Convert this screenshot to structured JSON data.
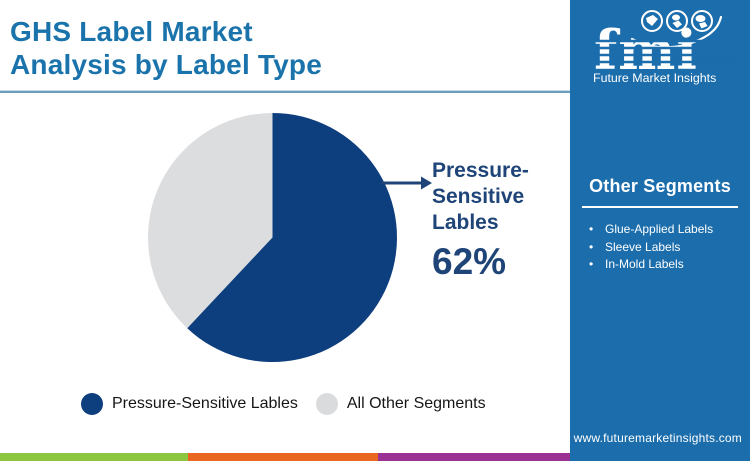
{
  "header": {
    "title_line1": "GHS Label Market",
    "title_line2": "Analysis by Label Type"
  },
  "chart_data": {
    "type": "pie",
    "title": "GHS Label Market Analysis by Label Type",
    "slices": [
      {
        "label": "Pressure-Sensitive Lables",
        "value": 62,
        "color": "#0d3e7d"
      },
      {
        "label": "All Other Segments",
        "value": 38,
        "color": "#dcdddf"
      }
    ],
    "start_angle_deg": 0,
    "direction": "clockwise",
    "legend_position": "bottom",
    "annotation": {
      "target_slice": "Pressure-Sensitive Lables",
      "lines": [
        "Pressure-",
        "Sensitive",
        "Lables"
      ],
      "value_label": "62%"
    }
  },
  "callout": {
    "line1": "Pressure-",
    "line2": "Sensitive",
    "line3": "Lables",
    "value": "62%"
  },
  "legend": [
    {
      "label": "Pressure-Sensitive Lables",
      "color": "#0d3e7d"
    },
    {
      "label": "All Other Segments",
      "color": "#d9dbdd"
    }
  ],
  "logo": {
    "brand": "fmi",
    "tagline": "Future Market Insights"
  },
  "sidebar": {
    "heading": "Other Segments",
    "items": [
      "Glue-Applied Labels",
      "Sleeve Labels",
      "In-Mold Labels"
    ],
    "url": "www.futuremarketinsights.com"
  },
  "footer_stripe": [
    "#8cc540",
    "#e9671f",
    "#9a3193"
  ],
  "colors": {
    "title_blue": "#1b73ab",
    "panel_blue": "#1b6dac",
    "pie_primary": "#0d3e7d",
    "pie_secondary": "#dcdddf",
    "callout_navy": "#1e4478",
    "legend_text": "#161616"
  }
}
